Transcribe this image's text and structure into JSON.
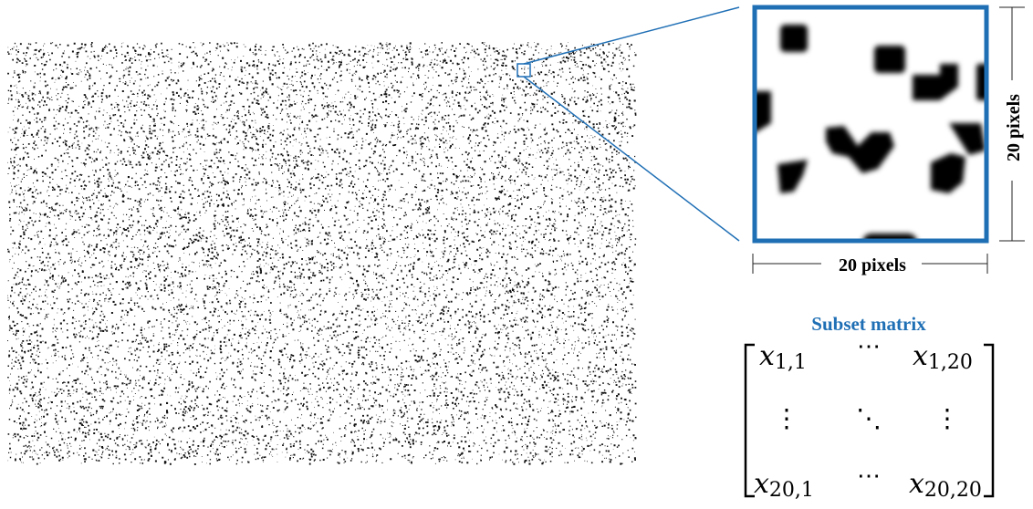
{
  "zoom": {
    "width_label": "20 pixels",
    "height_label": "20 pixels"
  },
  "matrix": {
    "title": "Subset matrix",
    "cells": {
      "top_left_var": "x",
      "top_left_sub": "1,1",
      "top_mid": "⋯",
      "top_right_var": "x",
      "top_right_sub": "1,20",
      "mid_left": "⋮",
      "mid_mid": "⋱",
      "mid_right": "⋮",
      "bot_left_var": "x",
      "bot_left_sub": "20,1",
      "bot_mid": "⋯",
      "bot_right_var": "x",
      "bot_right_sub": "20,20"
    }
  },
  "colors": {
    "accent": "#1f6fb5",
    "speckle": "#111111",
    "dim_line": "#222222",
    "title_blue": "#1f6fb5"
  }
}
